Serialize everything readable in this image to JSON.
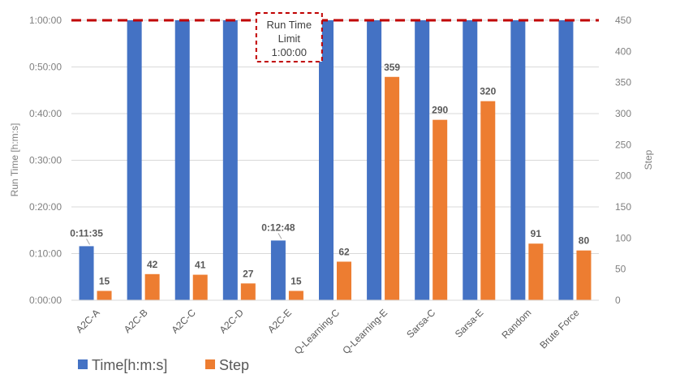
{
  "chart_data": {
    "type": "bar",
    "categories": [
      "A2C-A",
      "A2C-B",
      "A2C-C",
      "A2C-D",
      "A2C-E",
      "Q-Learning-C",
      "Q-Learning-E",
      "Sarsa-C",
      "Sarsa-E",
      "Random",
      "Brute Force"
    ],
    "series": [
      {
        "name": "Time[h:m:s]",
        "axis": "left",
        "color": "#4472c4",
        "values_seconds": [
          695,
          3600,
          3600,
          3600,
          768,
          3600,
          3600,
          3600,
          3600,
          3600,
          3600
        ],
        "data_labels": [
          "0:11:35",
          "",
          "",
          "",
          "0:12:48",
          "",
          "",
          "",
          "",
          "",
          ""
        ]
      },
      {
        "name": "Step",
        "axis": "right",
        "color": "#ed7d31",
        "values": [
          15,
          42,
          41,
          27,
          15,
          62,
          359,
          290,
          320,
          91,
          80
        ],
        "data_labels": [
          "15",
          "42",
          "41",
          "27",
          "15",
          "62",
          "359",
          "290",
          "320",
          "91",
          "80"
        ]
      }
    ],
    "y_left": {
      "title": "Run Time [h:m:s]",
      "range_seconds": [
        0,
        3600
      ],
      "tick_values_seconds": [
        0,
        600,
        1200,
        1800,
        2400,
        3000,
        3600
      ],
      "tick_labels": [
        "0:00:00",
        "0:10:00",
        "0:20:00",
        "0:30:00",
        "0:40:00",
        "0:50:00",
        "1:00:00"
      ]
    },
    "y_right": {
      "title": "Step",
      "range": [
        0,
        450
      ],
      "tick_values": [
        0,
        50,
        100,
        150,
        200,
        250,
        300,
        350,
        400,
        450
      ],
      "tick_labels": [
        "0",
        "50",
        "100",
        "150",
        "200",
        "250",
        "300",
        "350",
        "400",
        "450"
      ]
    },
    "limit_line": {
      "value_seconds": 3600,
      "color": "#c00000",
      "style": "dashed",
      "annotation_lines": [
        "Run Time",
        "Limit",
        "1:00:00"
      ]
    },
    "legend": {
      "placement": "bottom-left",
      "entries": [
        "Time[h:m:s]",
        "Step"
      ]
    }
  }
}
